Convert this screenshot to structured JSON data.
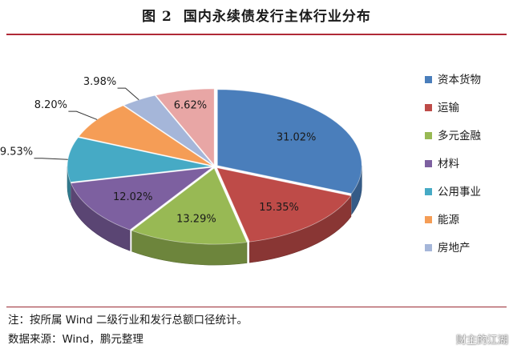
{
  "title": {
    "label": "图 2",
    "text": "国内永续债发行主体行业分布"
  },
  "notes": {
    "note": "注：按所属 Wind 二级行业和发行总额口径统计。",
    "source": "数据来源：Wind，鹏元整理"
  },
  "watermark": {
    "text": "财主的江湖",
    "icon": "wechat-bubble-icon"
  },
  "chart_data": {
    "type": "pie",
    "style": "3d-exploded",
    "legend_position": "right",
    "slices": [
      {
        "label": "资本货物",
        "value": 31.02,
        "value_label": "31.02%",
        "color": "#4a7ebb"
      },
      {
        "label": "运输",
        "value": 15.35,
        "value_label": "15.35%",
        "color": "#be4b48"
      },
      {
        "label": "多元金融",
        "value": 13.29,
        "value_label": "13.29%",
        "color": "#98b954"
      },
      {
        "label": "材料",
        "value": 12.02,
        "value_label": "12.02%",
        "color": "#7d60a0"
      },
      {
        "label": "公用事业",
        "value": 9.53,
        "value_label": "9.53%",
        "color": "#46aac5"
      },
      {
        "label": "能源",
        "value": 8.2,
        "value_label": "8.20%",
        "color": "#f59d56"
      },
      {
        "label": "房地产",
        "value": 3.98,
        "value_label": "3.98%",
        "color": "#a5b6d9"
      },
      {
        "label": "",
        "value": 6.62,
        "value_label": "6.62%",
        "color": "#e8a6a5"
      }
    ]
  }
}
